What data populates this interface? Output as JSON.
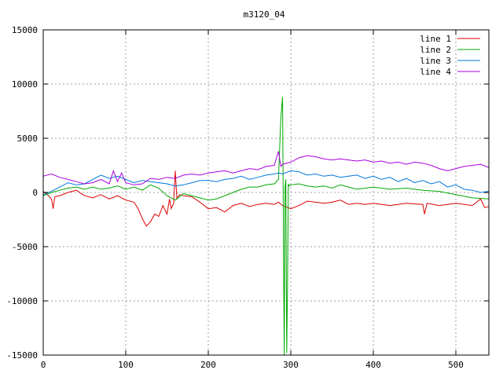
{
  "chart_data": {
    "type": "line",
    "title": "m3120_04",
    "xlabel": "",
    "ylabel": "",
    "xlim": [
      0,
      540
    ],
    "ylim": [
      -15000,
      15000
    ],
    "x_ticks": [
      0,
      100,
      200,
      300,
      400,
      500
    ],
    "y_ticks": [
      -15000,
      -10000,
      -5000,
      0,
      5000,
      10000,
      15000
    ],
    "grid": true,
    "legend_position": "top-right",
    "series": [
      {
        "name": "line 1",
        "color": "#dd0000",
        "x": [
          0,
          5,
          10,
          12,
          14,
          20,
          30,
          40,
          50,
          60,
          70,
          80,
          90,
          100,
          110,
          115,
          120,
          125,
          130,
          135,
          140,
          145,
          150,
          153,
          155,
          158,
          160,
          162,
          165,
          170,
          180,
          190,
          200,
          210,
          220,
          230,
          240,
          250,
          260,
          270,
          280,
          285,
          290,
          300,
          310,
          320,
          330,
          340,
          350,
          360,
          370,
          380,
          390,
          400,
          420,
          440,
          460,
          462,
          465,
          480,
          500,
          520,
          530,
          535,
          540
        ],
        "y": [
          100,
          -200,
          -600,
          -1500,
          -400,
          -300,
          0,
          200,
          -300,
          -500,
          -200,
          -600,
          -300,
          -700,
          -900,
          -1500,
          -2400,
          -3100,
          -2700,
          -2000,
          -2200,
          -1200,
          -2000,
          -600,
          -1500,
          -1000,
          2000,
          -600,
          -200,
          -300,
          -400,
          -900,
          -1500,
          -1400,
          -1800,
          -1200,
          -1000,
          -1300,
          -1100,
          -1000,
          -1100,
          -900,
          -1200,
          -1500,
          -1200,
          -800,
          -900,
          -1000,
          -900,
          -700,
          -1100,
          -1000,
          -1100,
          -1000,
          -1200,
          -1000,
          -1100,
          -2000,
          -1000,
          -1200,
          -1000,
          -1200,
          -600,
          -1400,
          -1300
        ]
      },
      {
        "name": "line 2",
        "color": "#00aa00",
        "x": [
          0,
          10,
          20,
          30,
          40,
          50,
          60,
          70,
          80,
          90,
          100,
          110,
          120,
          130,
          140,
          150,
          160,
          170,
          180,
          190,
          200,
          210,
          220,
          230,
          240,
          250,
          260,
          270,
          280,
          285,
          288,
          290,
          291,
          292,
          293,
          294,
          295,
          296,
          297,
          298,
          300,
          310,
          320,
          330,
          340,
          350,
          360,
          370,
          380,
          390,
          400,
          420,
          440,
          460,
          480,
          500,
          520,
          540
        ],
        "y": [
          -300,
          0,
          200,
          400,
          500,
          300,
          500,
          300,
          400,
          600,
          300,
          500,
          200,
          700,
          400,
          -300,
          -700,
          -100,
          -300,
          -500,
          -700,
          -600,
          -300,
          0,
          300,
          500,
          500,
          700,
          800,
          1200,
          7000,
          8800,
          -3500,
          -15000,
          500,
          1200,
          -14800,
          -9000,
          800,
          600,
          700,
          800,
          600,
          500,
          600,
          400,
          700,
          500,
          300,
          400,
          500,
          300,
          400,
          200,
          100,
          -200,
          -500,
          -600
        ]
      },
      {
        "name": "line 3",
        "color": "#0077dd",
        "x": [
          0,
          10,
          20,
          30,
          40,
          50,
          60,
          70,
          80,
          90,
          100,
          110,
          120,
          130,
          140,
          150,
          160,
          170,
          180,
          190,
          200,
          210,
          220,
          230,
          240,
          250,
          260,
          270,
          280,
          285,
          290,
          300,
          310,
          320,
          330,
          340,
          350,
          360,
          370,
          380,
          390,
          400,
          410,
          420,
          430,
          440,
          450,
          460,
          470,
          480,
          490,
          500,
          510,
          520,
          530,
          540
        ],
        "y": [
          -200,
          100,
          500,
          900,
          700,
          800,
          1200,
          1600,
          1300,
          1500,
          1200,
          900,
          1100,
          1000,
          900,
          800,
          600,
          700,
          900,
          1100,
          1100,
          1000,
          1200,
          1300,
          1500,
          1200,
          1400,
          1600,
          1700,
          1800,
          1700,
          2000,
          1900,
          1600,
          1700,
          1500,
          1600,
          1400,
          1500,
          1600,
          1300,
          1500,
          1200,
          1400,
          1000,
          1300,
          900,
          1100,
          800,
          1000,
          500,
          700,
          300,
          200,
          0,
          100
        ]
      },
      {
        "name": "line 4",
        "color": "#aa00dd",
        "x": [
          0,
          10,
          20,
          30,
          40,
          50,
          60,
          70,
          80,
          85,
          90,
          95,
          100,
          110,
          120,
          130,
          140,
          150,
          160,
          170,
          180,
          190,
          200,
          210,
          220,
          230,
          240,
          250,
          260,
          270,
          280,
          285,
          288,
          290,
          300,
          310,
          320,
          330,
          340,
          350,
          360,
          370,
          380,
          390,
          400,
          410,
          420,
          430,
          440,
          450,
          460,
          470,
          480,
          490,
          500,
          510,
          520,
          530,
          540
        ],
        "y": [
          1500,
          1700,
          1400,
          1200,
          1000,
          800,
          900,
          1200,
          800,
          2000,
          1000,
          1800,
          900,
          700,
          800,
          1300,
          1200,
          1400,
          1300,
          1600,
          1700,
          1600,
          1800,
          1900,
          2000,
          1800,
          2000,
          2200,
          2100,
          2400,
          2500,
          3800,
          2400,
          2600,
          2800,
          3200,
          3400,
          3300,
          3100,
          3000,
          3100,
          3000,
          2900,
          3000,
          2800,
          2900,
          2700,
          2800,
          2600,
          2800,
          2700,
          2500,
          2200,
          2000,
          2200,
          2400,
          2500,
          2600,
          2300
        ]
      }
    ]
  }
}
